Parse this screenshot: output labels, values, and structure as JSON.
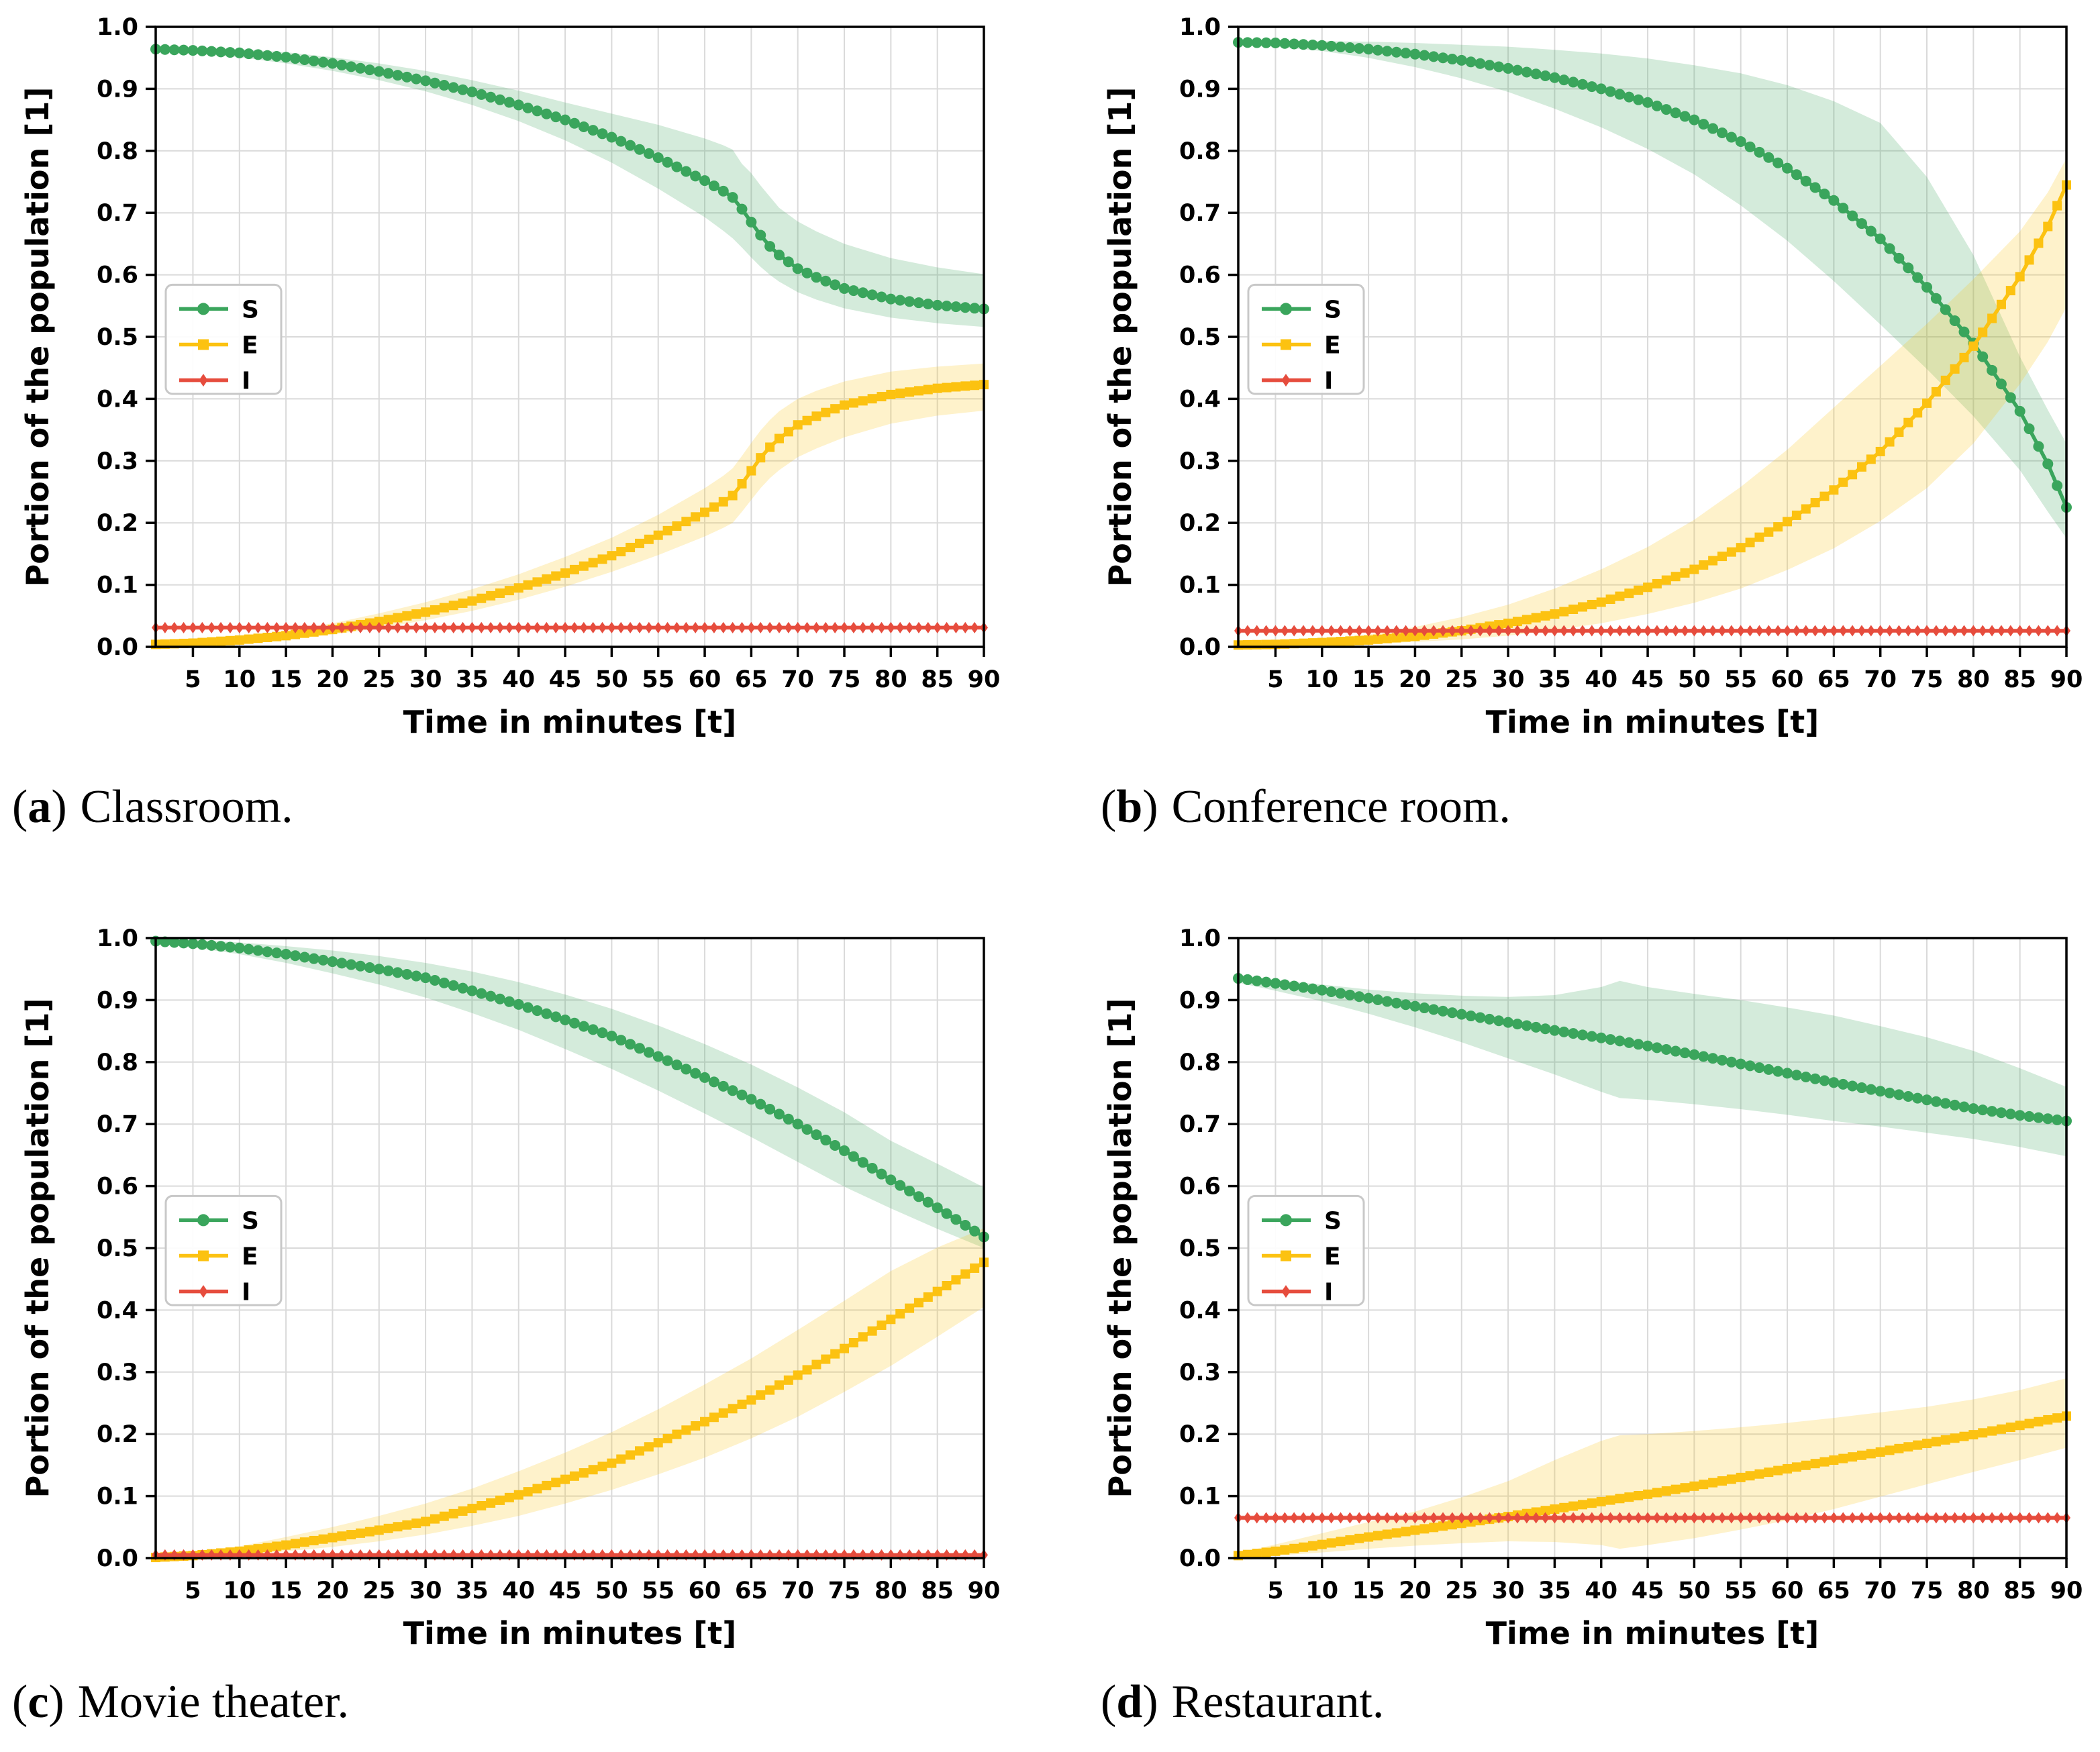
{
  "figure": {
    "xlabel": "Time in minutes [t]",
    "ylabel": "Portion of the population [1]",
    "legend_entries": [
      "S",
      "E",
      "I"
    ],
    "colors": {
      "S": "#3aa55c",
      "E": "#fcc211",
      "I": "#e64c3d",
      "grid": "#dadada",
      "spine": "#000000",
      "legend_border": "#c8c8c8",
      "background": "#ffffff"
    }
  },
  "captions": [
    {
      "prefix": "(",
      "letter": "a",
      "suffix": ")",
      "title": "Classroom."
    },
    {
      "prefix": "(",
      "letter": "b",
      "suffix": ")",
      "title": "Conference room."
    },
    {
      "prefix": "(",
      "letter": "c",
      "suffix": ")",
      "title": "Movie theater."
    },
    {
      "prefix": "(",
      "letter": "d",
      "suffix": ")",
      "title": "Restaurant."
    }
  ],
  "chart_data": [
    {
      "id": "a",
      "type": "line",
      "title": "Classroom",
      "xlabel": "Time in minutes [t]",
      "ylabel": "Portion of the population [1]",
      "xlim": [
        1,
        90
      ],
      "ylim": [
        0,
        1
      ],
      "xticks": [
        5,
        10,
        15,
        20,
        25,
        30,
        35,
        40,
        45,
        50,
        55,
        60,
        65,
        70,
        75,
        80,
        85,
        90
      ],
      "yticks": [
        0,
        0.1,
        0.2,
        0.3,
        0.4,
        0.5,
        0.6,
        0.7,
        0.8,
        0.9,
        1.0
      ],
      "grid": true,
      "legend_position": "center-left",
      "series": [
        {
          "name": "S",
          "marker": "circle",
          "t": [
            1,
            5,
            10,
            15,
            20,
            25,
            30,
            35,
            40,
            45,
            50,
            55,
            60,
            62,
            63,
            64,
            65,
            66,
            67,
            68,
            70,
            72,
            75,
            80,
            85,
            90
          ],
          "v": [
            0.964,
            0.962,
            0.958,
            0.951,
            0.941,
            0.928,
            0.913,
            0.895,
            0.874,
            0.85,
            0.822,
            0.789,
            0.752,
            0.735,
            0.725,
            0.706,
            0.685,
            0.664,
            0.646,
            0.632,
            0.61,
            0.596,
            0.578,
            0.561,
            0.551,
            0.545
          ],
          "lo": [
            0.96,
            0.957,
            0.951,
            0.941,
            0.929,
            0.914,
            0.896,
            0.874,
            0.848,
            0.817,
            0.781,
            0.739,
            0.693,
            0.671,
            0.659,
            0.644,
            0.628,
            0.613,
            0.6,
            0.589,
            0.572,
            0.56,
            0.546,
            0.531,
            0.522,
            0.516
          ],
          "hi": [
            0.968,
            0.967,
            0.964,
            0.959,
            0.951,
            0.941,
            0.929,
            0.914,
            0.897,
            0.878,
            0.86,
            0.842,
            0.82,
            0.809,
            0.802,
            0.779,
            0.764,
            0.744,
            0.726,
            0.708,
            0.686,
            0.67,
            0.65,
            0.627,
            0.612,
            0.601
          ]
        },
        {
          "name": "E",
          "marker": "square",
          "t": [
            1,
            5,
            10,
            15,
            20,
            25,
            30,
            35,
            40,
            45,
            50,
            55,
            60,
            62,
            63,
            64,
            65,
            66,
            67,
            68,
            70,
            72,
            75,
            80,
            85,
            90
          ],
          "v": [
            0.004,
            0.006,
            0.011,
            0.018,
            0.028,
            0.041,
            0.056,
            0.074,
            0.095,
            0.119,
            0.147,
            0.18,
            0.217,
            0.234,
            0.244,
            0.263,
            0.284,
            0.305,
            0.322,
            0.336,
            0.358,
            0.372,
            0.39,
            0.407,
            0.417,
            0.423
          ],
          "lo": [
            0.002,
            0.004,
            0.007,
            0.012,
            0.02,
            0.03,
            0.043,
            0.058,
            0.076,
            0.097,
            0.121,
            0.148,
            0.178,
            0.192,
            0.2,
            0.218,
            0.237,
            0.256,
            0.272,
            0.285,
            0.306,
            0.32,
            0.338,
            0.36,
            0.373,
            0.381
          ],
          "hi": [
            0.006,
            0.009,
            0.016,
            0.026,
            0.038,
            0.054,
            0.072,
            0.093,
            0.117,
            0.145,
            0.176,
            0.213,
            0.256,
            0.276,
            0.288,
            0.308,
            0.329,
            0.349,
            0.366,
            0.38,
            0.4,
            0.413,
            0.428,
            0.444,
            0.452,
            0.457
          ]
        },
        {
          "name": "I",
          "marker": "diamond",
          "t": [
            1,
            90
          ],
          "v": [
            0.031,
            0.031
          ],
          "lo": [
            0.028,
            0.028
          ],
          "hi": [
            0.034,
            0.034
          ]
        }
      ]
    },
    {
      "id": "b",
      "type": "line",
      "title": "Conference room",
      "xlabel": "Time in minutes [t]",
      "ylabel": "Portion of the population [1]",
      "xlim": [
        1,
        90
      ],
      "ylim": [
        0,
        1
      ],
      "xticks": [
        5,
        10,
        15,
        20,
        25,
        30,
        35,
        40,
        45,
        50,
        55,
        60,
        65,
        70,
        75,
        80,
        85,
        90
      ],
      "yticks": [
        0,
        0.1,
        0.2,
        0.3,
        0.4,
        0.5,
        0.6,
        0.7,
        0.8,
        0.9,
        1.0
      ],
      "grid": true,
      "legend_position": "center-left",
      "series": [
        {
          "name": "S",
          "marker": "circle",
          "t": [
            1,
            5,
            10,
            15,
            20,
            25,
            30,
            35,
            40,
            45,
            50,
            55,
            60,
            65,
            70,
            75,
            80,
            85,
            88,
            90
          ],
          "v": [
            0.975,
            0.974,
            0.97,
            0.964,
            0.956,
            0.946,
            0.933,
            0.918,
            0.9,
            0.878,
            0.85,
            0.815,
            0.772,
            0.72,
            0.658,
            0.58,
            0.49,
            0.38,
            0.295,
            0.225
          ],
          "lo": [
            0.971,
            0.968,
            0.961,
            0.95,
            0.935,
            0.917,
            0.895,
            0.868,
            0.838,
            0.803,
            0.762,
            0.712,
            0.655,
            0.59,
            0.52,
            0.448,
            0.372,
            0.285,
            0.218,
            0.175
          ],
          "hi": [
            0.979,
            0.978,
            0.977,
            0.976,
            0.974,
            0.971,
            0.968,
            0.963,
            0.957,
            0.949,
            0.938,
            0.925,
            0.906,
            0.88,
            0.845,
            0.758,
            0.632,
            0.468,
            0.382,
            0.328
          ]
        },
        {
          "name": "E",
          "marker": "square",
          "t": [
            1,
            5,
            10,
            15,
            20,
            25,
            30,
            35,
            40,
            45,
            50,
            55,
            60,
            65,
            70,
            75,
            80,
            85,
            88,
            90
          ],
          "v": [
            0.003,
            0.004,
            0.007,
            0.011,
            0.017,
            0.026,
            0.038,
            0.053,
            0.072,
            0.096,
            0.125,
            0.16,
            0.202,
            0.253,
            0.315,
            0.393,
            0.485,
            0.597,
            0.678,
            0.745
          ],
          "lo": [
            0.001,
            0.002,
            0.003,
            0.005,
            0.008,
            0.012,
            0.018,
            0.027,
            0.038,
            0.053,
            0.071,
            0.094,
            0.124,
            0.159,
            0.203,
            0.256,
            0.328,
            0.424,
            0.492,
            0.548
          ],
          "hi": [
            0.005,
            0.007,
            0.012,
            0.02,
            0.032,
            0.048,
            0.068,
            0.094,
            0.125,
            0.161,
            0.205,
            0.258,
            0.318,
            0.386,
            0.453,
            0.521,
            0.593,
            0.67,
            0.733,
            0.788
          ]
        },
        {
          "name": "I",
          "marker": "diamond",
          "t": [
            1,
            90
          ],
          "v": [
            0.026,
            0.026
          ],
          "lo": [
            0.023,
            0.023
          ],
          "hi": [
            0.029,
            0.029
          ]
        }
      ]
    },
    {
      "id": "c",
      "type": "line",
      "title": "Movie theater",
      "xlabel": "Time in minutes [t]",
      "ylabel": "Portion of the population [1]",
      "xlim": [
        1,
        90
      ],
      "ylim": [
        0,
        1
      ],
      "xticks": [
        5,
        10,
        15,
        20,
        25,
        30,
        35,
        40,
        45,
        50,
        55,
        60,
        65,
        70,
        75,
        80,
        85,
        90
      ],
      "yticks": [
        0,
        0.1,
        0.2,
        0.3,
        0.4,
        0.5,
        0.6,
        0.7,
        0.8,
        0.9,
        1.0
      ],
      "grid": true,
      "legend_position": "center-left",
      "series": [
        {
          "name": "S",
          "marker": "circle",
          "t": [
            1,
            5,
            10,
            15,
            20,
            25,
            30,
            35,
            40,
            45,
            50,
            55,
            60,
            65,
            70,
            75,
            80,
            85,
            90
          ],
          "v": [
            0.995,
            0.991,
            0.984,
            0.974,
            0.962,
            0.95,
            0.936,
            0.915,
            0.893,
            0.868,
            0.842,
            0.809,
            0.775,
            0.74,
            0.7,
            0.657,
            0.61,
            0.565,
            0.518
          ],
          "lo": [
            0.991,
            0.985,
            0.974,
            0.96,
            0.943,
            0.925,
            0.904,
            0.879,
            0.852,
            0.821,
            0.789,
            0.754,
            0.717,
            0.679,
            0.639,
            0.599,
            0.564,
            0.531,
            0.5
          ],
          "hi": [
            0.999,
            0.997,
            0.993,
            0.987,
            0.98,
            0.971,
            0.96,
            0.946,
            0.929,
            0.909,
            0.886,
            0.859,
            0.829,
            0.796,
            0.759,
            0.719,
            0.673,
            0.636,
            0.598
          ]
        },
        {
          "name": "E",
          "marker": "square",
          "t": [
            1,
            5,
            10,
            15,
            20,
            25,
            30,
            35,
            40,
            45,
            50,
            55,
            60,
            65,
            70,
            75,
            80,
            85,
            90
          ],
          "v": [
            0.001,
            0.004,
            0.011,
            0.021,
            0.033,
            0.045,
            0.059,
            0.08,
            0.102,
            0.127,
            0.153,
            0.186,
            0.22,
            0.255,
            0.295,
            0.338,
            0.385,
            0.43,
            0.477
          ],
          "lo": [
            0.0,
            0.002,
            0.005,
            0.011,
            0.018,
            0.027,
            0.038,
            0.052,
            0.068,
            0.088,
            0.11,
            0.135,
            0.162,
            0.193,
            0.228,
            0.268,
            0.31,
            0.357,
            0.405
          ],
          "hi": [
            0.003,
            0.008,
            0.019,
            0.034,
            0.05,
            0.068,
            0.088,
            0.112,
            0.14,
            0.17,
            0.203,
            0.24,
            0.28,
            0.322,
            0.368,
            0.415,
            0.463,
            0.501,
            0.532
          ]
        },
        {
          "name": "I",
          "marker": "diamond",
          "t": [
            1,
            90
          ],
          "v": [
            0.005,
            0.005
          ],
          "lo": [
            0.003,
            0.003
          ],
          "hi": [
            0.007,
            0.007
          ]
        }
      ]
    },
    {
      "id": "d",
      "type": "line",
      "title": "Restaurant",
      "xlabel": "Time in minutes [t]",
      "ylabel": "Portion of the population [1]",
      "xlim": [
        1,
        90
      ],
      "ylim": [
        0,
        1
      ],
      "xticks": [
        5,
        10,
        15,
        20,
        25,
        30,
        35,
        40,
        45,
        50,
        55,
        60,
        65,
        70,
        75,
        80,
        85,
        90
      ],
      "yticks": [
        0,
        0.1,
        0.2,
        0.3,
        0.4,
        0.5,
        0.6,
        0.7,
        0.8,
        0.9,
        1.0
      ],
      "grid": true,
      "legend_position": "center-left",
      "series": [
        {
          "name": "S",
          "marker": "circle",
          "t": [
            1,
            5,
            10,
            15,
            20,
            25,
            30,
            35,
            40,
            42,
            45,
            50,
            55,
            60,
            65,
            70,
            75,
            80,
            85,
            90
          ],
          "v": [
            0.935,
            0.927,
            0.916,
            0.903,
            0.89,
            0.877,
            0.864,
            0.851,
            0.839,
            0.834,
            0.826,
            0.812,
            0.797,
            0.782,
            0.767,
            0.753,
            0.739,
            0.725,
            0.714,
            0.705
          ],
          "lo": [
            0.928,
            0.915,
            0.898,
            0.878,
            0.856,
            0.832,
            0.806,
            0.78,
            0.752,
            0.742,
            0.739,
            0.732,
            0.724,
            0.715,
            0.705,
            0.696,
            0.686,
            0.676,
            0.663,
            0.648
          ],
          "hi": [
            0.941,
            0.932,
            0.925,
            0.917,
            0.911,
            0.907,
            0.905,
            0.908,
            0.921,
            0.931,
            0.921,
            0.91,
            0.9,
            0.888,
            0.875,
            0.858,
            0.84,
            0.818,
            0.79,
            0.76
          ]
        },
        {
          "name": "E",
          "marker": "square",
          "t": [
            1,
            5,
            10,
            15,
            20,
            25,
            30,
            35,
            40,
            42,
            45,
            50,
            55,
            60,
            65,
            70,
            75,
            80,
            85,
            90
          ],
          "v": [
            0.004,
            0.011,
            0.022,
            0.034,
            0.045,
            0.056,
            0.067,
            0.079,
            0.091,
            0.096,
            0.103,
            0.116,
            0.13,
            0.144,
            0.158,
            0.171,
            0.185,
            0.199,
            0.214,
            0.229
          ],
          "lo": [
            0.001,
            0.004,
            0.009,
            0.015,
            0.02,
            0.024,
            0.027,
            0.026,
            0.021,
            0.015,
            0.021,
            0.032,
            0.046,
            0.061,
            0.079,
            0.099,
            0.119,
            0.139,
            0.158,
            0.178
          ],
          "hi": [
            0.008,
            0.022,
            0.04,
            0.058,
            0.075,
            0.098,
            0.124,
            0.158,
            0.189,
            0.198,
            0.2,
            0.205,
            0.211,
            0.218,
            0.226,
            0.235,
            0.244,
            0.256,
            0.271,
            0.29
          ]
        },
        {
          "name": "I",
          "marker": "diamond",
          "t": [
            1,
            90
          ],
          "v": [
            0.065,
            0.065
          ],
          "lo": [
            0.061,
            0.061
          ],
          "hi": [
            0.069,
            0.069
          ]
        }
      ]
    }
  ]
}
